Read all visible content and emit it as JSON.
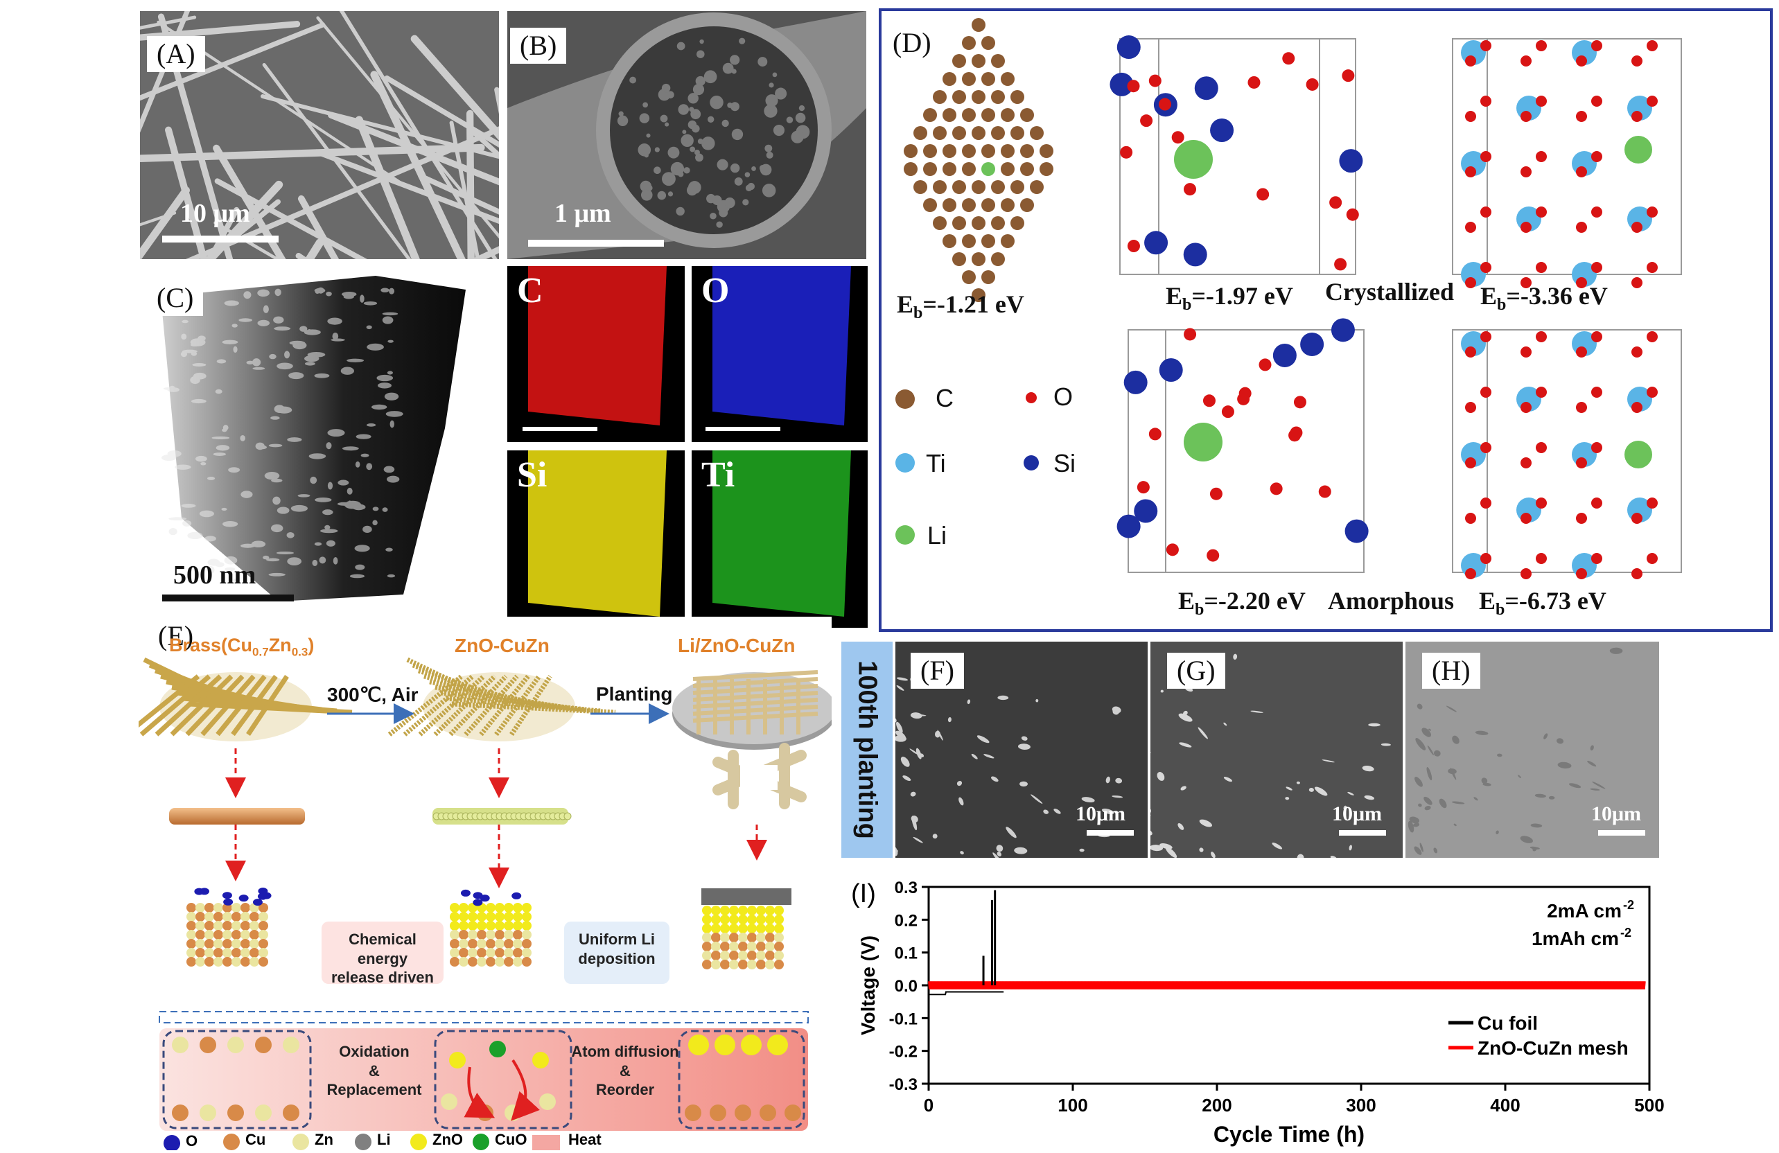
{
  "panels": {
    "A": {
      "label": "(A)",
      "scale": "10 μm"
    },
    "B": {
      "label": "(B)",
      "scale": "1 μm"
    },
    "C": {
      "label": "(C)",
      "scale": "500 nm"
    },
    "D": {
      "label": "(D)"
    },
    "E": {
      "label": "(E)"
    },
    "F": {
      "label": "(F)",
      "scale": "10μm"
    },
    "G": {
      "label": "(G)",
      "scale": "10μm"
    },
    "H": {
      "label": "(H)",
      "scale": "10μm"
    },
    "I": {
      "label": "(I)"
    }
  },
  "eds": {
    "C": {
      "label": "C",
      "color": "#d41414"
    },
    "O": {
      "label": "O",
      "color": "#1c22c8"
    },
    "Si": {
      "label": "Si",
      "color": "#e6d80f"
    },
    "Ti": {
      "label": "Ti",
      "color": "#1fa31f"
    }
  },
  "panelD": {
    "eb_graphite": "-1.21 eV",
    "eb_cryst_si": "-1.97 eV",
    "eb_cryst_ti": "-3.36 eV",
    "eb_amor_si": "-2.20 eV",
    "eb_amor_ti": "-6.73 eV",
    "eb_prefix": "E",
    "eb_sub": "b",
    "eb_eq": "=",
    "crystallized": "Crystallized",
    "amorphous": "Amorphous",
    "legend": {
      "C": "C",
      "O": "O",
      "Ti": "Ti",
      "Si": "Si",
      "Li": "Li"
    },
    "colors": {
      "C": "#8a5a32",
      "O": "#d81414",
      "Ti": "#5ab4e6",
      "Si": "#1c2ea0",
      "Li": "#6cc25a"
    }
  },
  "panelE": {
    "brass_main": "Brass(Cu",
    "brass_sub1": "0.7",
    "brass_mid": "Zn",
    "brass_sub2": "0.3",
    "brass_end": ")",
    "zno": "ZnO-CuZn",
    "lizno": "Li/ZnO-CuZn",
    "step1": "300℃, Air",
    "step2": "Planting",
    "chem1": "Chemical energy",
    "chem2": "release driven",
    "uni1": "Uniform Li",
    "uni2": "deposition",
    "ox1": "Oxidation",
    "ox2": "&",
    "ox3": "Replacement",
    "ad1": "Atom diffusion",
    "ad2": "&",
    "ad3": "Reorder",
    "legend": [
      "O",
      "Cu",
      "Zn",
      "Li",
      "ZnO",
      "CuO",
      "Heat"
    ]
  },
  "planting": "100th planting",
  "chart_data": {
    "type": "line",
    "xlabel": "Cycle Time (h)",
    "ylabel": "Voltage (V)",
    "xlim": [
      0,
      500
    ],
    "ylim": [
      -0.3,
      0.3
    ],
    "xticks": [
      0,
      100,
      200,
      300,
      400,
      500
    ],
    "yticks": [
      0.3,
      0.2,
      0.1,
      0.0,
      -0.1,
      -0.2,
      -0.3
    ],
    "annotation1": "2mA cm",
    "annotation1_sup": "-2",
    "annotation2": "1mAh cm",
    "annotation2_sup": "-2",
    "series": [
      {
        "name": "Cu foil",
        "color": "#000000",
        "x_range": [
          0,
          52
        ],
        "amplitude_start": 0.02,
        "spikes": [
          [
            38,
            0.09
          ],
          [
            44,
            0.26
          ],
          [
            46,
            0.29
          ]
        ]
      },
      {
        "name": "ZnO-CuZn mesh",
        "color": "#ff0000",
        "x_range": [
          0,
          497
        ],
        "amplitude": 0.012
      }
    ]
  }
}
